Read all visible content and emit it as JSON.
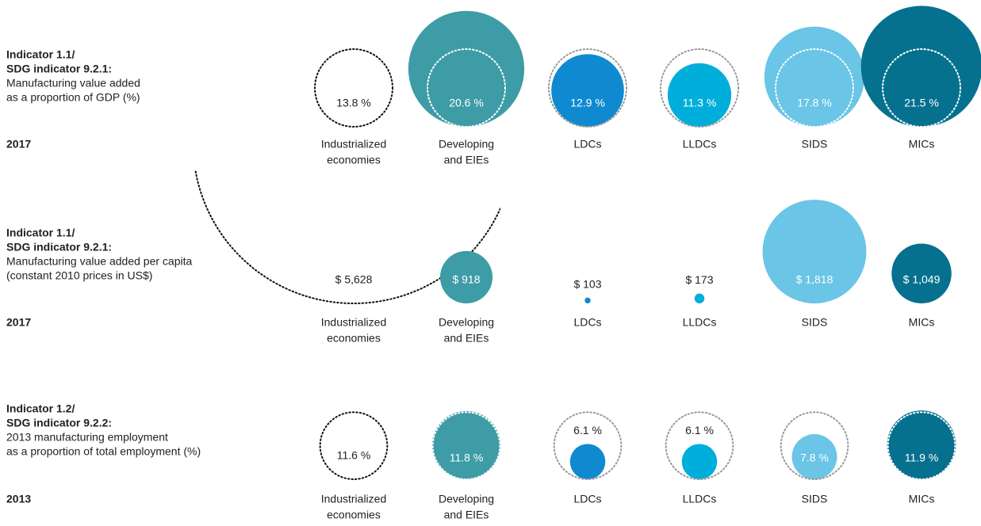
{
  "chart_data": [
    {
      "type": "bubble",
      "title": [
        "Indicator 1.1/",
        "SDG indicator 9.2.1:"
      ],
      "subtitle": [
        "Manufacturing value added",
        "as a proportion of GDP (%)"
      ],
      "year": "2017",
      "categories": [
        [
          "Industrialized",
          "economies"
        ],
        [
          "Developing",
          "and EIEs"
        ],
        [
          "LDCs"
        ],
        [
          "LLDCs"
        ],
        [
          "SIDS"
        ],
        [
          "MICs"
        ]
      ],
      "values": [
        13.8,
        20.6,
        12.9,
        11.3,
        17.8,
        21.5
      ],
      "value_labels": [
        "13.8 %",
        "20.6 %",
        "12.9 %",
        "11.3 %",
        "17.8 %",
        "21.5 %"
      ],
      "colors": [
        "none",
        "#3e9ca6",
        "#0f8ad0",
        "#00aedb",
        "#6ac5e6",
        "#06718f"
      ],
      "reference_rings": true
    },
    {
      "type": "bubble",
      "title": [
        "Indicator 1.1/",
        "SDG indicator 9.2.1:"
      ],
      "subtitle": [
        "Manufacturing value added per capita",
        "(constant 2010 prices in US$)"
      ],
      "year": "2017",
      "categories": [
        [
          "Industrialized",
          "economies"
        ],
        [
          "Developing",
          "and EIEs"
        ],
        [
          "LDCs"
        ],
        [
          "LLDCs"
        ],
        [
          "SIDS"
        ],
        [
          "MICs"
        ]
      ],
      "values": [
        5628,
        918,
        103,
        173,
        1818,
        1049
      ],
      "value_labels": [
        "$ 5,628",
        "$ 918",
        "$ 103",
        "$ 173",
        "$ 1,818",
        "$ 1,049"
      ],
      "colors": [
        "none",
        "#3e9ca6",
        "#0f8ad0",
        "#00aedb",
        "#6ac5e6",
        "#06718f"
      ],
      "reference_rings": false
    },
    {
      "type": "bubble",
      "title": [
        "Indicator 1.2/",
        "SDG indicator 9.2.2:"
      ],
      "subtitle": [
        "2013 manufacturing employment",
        "as a proportion of total employment (%)"
      ],
      "year": "2013",
      "categories": [
        [
          "Industrialized",
          "economies"
        ],
        [
          "Developing",
          "and EIEs"
        ],
        [
          "LDCs"
        ],
        [
          "LLDCs"
        ],
        [
          "SIDS"
        ],
        [
          "MICs"
        ]
      ],
      "values": [
        11.6,
        11.8,
        6.1,
        6.1,
        7.8,
        11.9
      ],
      "value_labels": [
        "11.6 %",
        "11.8 %",
        "6.1 %",
        "6.1 %",
        "7.8 %",
        "11.9 %"
      ],
      "colors": [
        "none",
        "#3e9ca6",
        "#0f8ad0",
        "#00aedb",
        "#6ac5e6",
        "#06718f"
      ],
      "reference_rings": true
    }
  ]
}
